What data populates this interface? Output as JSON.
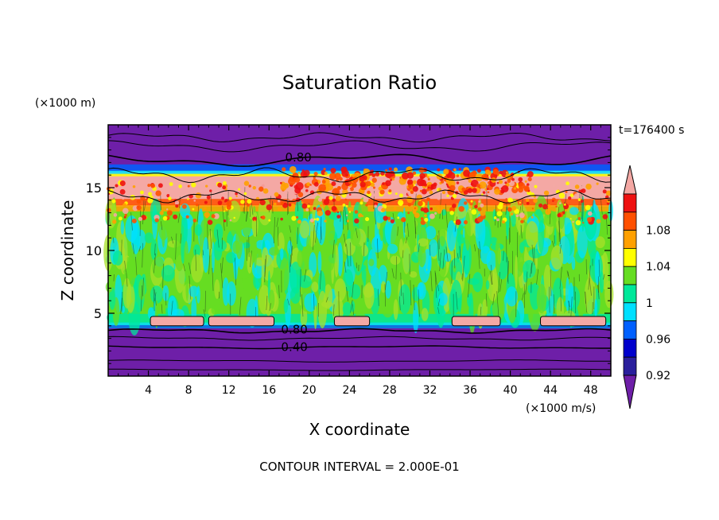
{
  "chart_data": {
    "type": "heatmap",
    "title": "Saturation Ratio",
    "xlabel": "X coordinate",
    "ylabel": "Z coordinate",
    "x_unit": "(×1000 m/s)",
    "y_unit": "(×1000 m)",
    "time_label": "t=176400 s",
    "contour_interval_label": "CONTOUR INTERVAL = 2.000E-01",
    "xlim": [
      0,
      50
    ],
    "ylim": [
      0,
      20
    ],
    "x_ticks": [
      4,
      8,
      12,
      16,
      20,
      24,
      28,
      32,
      36,
      40,
      44,
      48
    ],
    "y_ticks": [
      5,
      10,
      15
    ],
    "contour_labels": [
      {
        "text": "0.80",
        "x": 17.6,
        "y": 17.4
      },
      {
        "text": "0.80",
        "x": 17.2,
        "y": 3.7
      },
      {
        "text": "0.40",
        "x": 17.2,
        "y": 2.3
      }
    ],
    "layers": [
      {
        "level": "<0.92",
        "z_range": [
          0,
          3.8
        ]
      },
      {
        "level": "0.98–1.02",
        "z_range": [
          3.8,
          13.5
        ]
      },
      {
        "level": ">1.08",
        "z_range": [
          13.5,
          16.3
        ]
      },
      {
        "level": "<0.92",
        "z_range": [
          16.3,
          20
        ]
      }
    ],
    "colorbar": {
      "tick_labels": [
        "1.08",
        "1.04",
        "1",
        "0.96",
        "0.92"
      ],
      "bins": [
        {
          "range": "<0.90",
          "color": "#6e1fa8"
        },
        {
          "range": "0.90–0.92",
          "color": "#2a1f9c"
        },
        {
          "range": "0.92–0.94",
          "color": "#0000cc"
        },
        {
          "range": "0.94–0.96",
          "color": "#0060ff"
        },
        {
          "range": "0.96–0.98",
          "color": "#00e0ff"
        },
        {
          "range": "0.98–1.00",
          "color": "#00e89a"
        },
        {
          "range": "1.00–1.02",
          "color": "#66dd22"
        },
        {
          "range": "1.02–1.04",
          "color": "#ffff00"
        },
        {
          "range": "1.04–1.06",
          "color": "#ffa000"
        },
        {
          "range": "1.06–1.08",
          "color": "#ff5000"
        },
        {
          "range": "1.08–1.10",
          "color": "#ee1111"
        },
        {
          "range": ">1.10",
          "color": "#f4a8a4"
        }
      ]
    }
  }
}
